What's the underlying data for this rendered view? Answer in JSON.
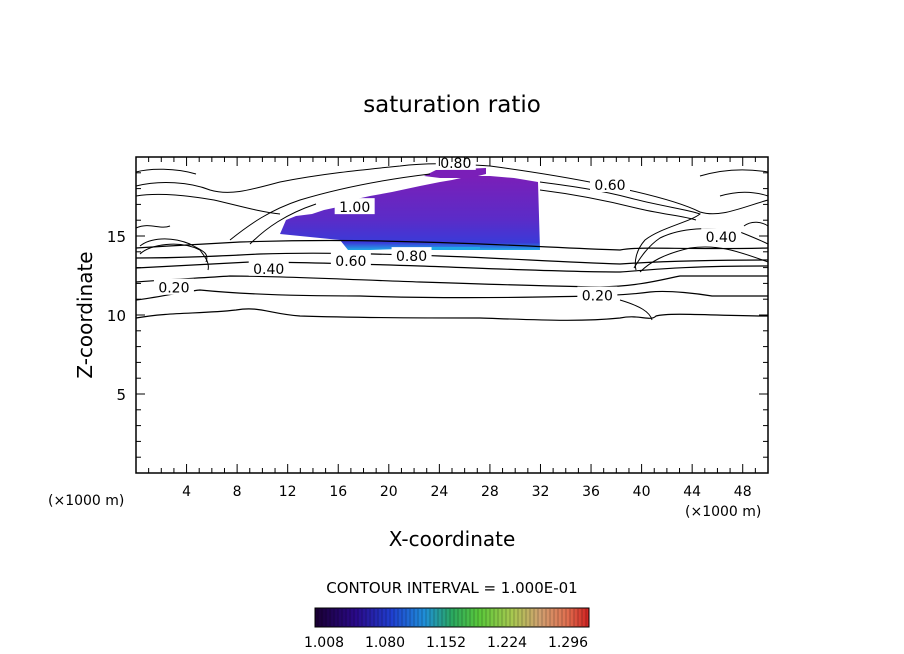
{
  "chart_data": {
    "type": "contour",
    "title": "saturation ratio",
    "xlabel": "X-coordinate",
    "ylabel": "Z-coordinate",
    "x_unit_label": "(×1000 m)",
    "xlim": [
      0,
      50
    ],
    "ylim": [
      0,
      20
    ],
    "x_ticks": [
      4,
      8,
      12,
      16,
      20,
      24,
      28,
      32,
      36,
      40,
      44,
      48
    ],
    "y_ticks": [
      5,
      10,
      15
    ],
    "contour_interval_text": "CONTOUR INTERVAL = 1.000E-01",
    "contour_labels": [
      {
        "text": "0.20",
        "x": 3.0,
        "z": 11.6
      },
      {
        "text": "0.20",
        "x": 36.5,
        "z": 11.1
      },
      {
        "text": "0.40",
        "x": 10.5,
        "z": 12.8
      },
      {
        "text": "0.40",
        "x": 46.3,
        "z": 14.8
      },
      {
        "text": "0.60",
        "x": 17.0,
        "z": 13.3
      },
      {
        "text": "0.60",
        "x": 37.5,
        "z": 18.1
      },
      {
        "text": "0.80",
        "x": 21.8,
        "z": 13.6
      },
      {
        "text": "0.80",
        "x": 25.3,
        "z": 19.5
      },
      {
        "text": "1.00",
        "x": 17.3,
        "z": 16.7
      }
    ],
    "colorbar": {
      "ticks": [
        "1.008",
        "1.080",
        "1.152",
        "1.224",
        "1.296"
      ],
      "colors": [
        "#1a0033",
        "#2a0a8a",
        "#1f3fd0",
        "#1f8fd8",
        "#2aa860",
        "#5ac83a",
        "#a8c850",
        "#d0a070",
        "#e07050",
        "#d02020"
      ]
    },
    "shaded_colors": [
      "#7a1fb8",
      "#5a2cc8",
      "#3a3ad8",
      "#22a8e8"
    ],
    "line_color": "#000000"
  }
}
